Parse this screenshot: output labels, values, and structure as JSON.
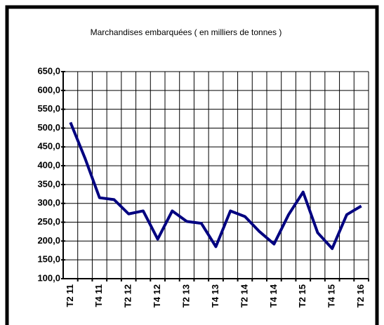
{
  "chart_data": {
    "type": "line",
    "title": "Marchandises embarquées ( en milliers de tonnes )",
    "categories": [
      "T2 11",
      null,
      "T4 11",
      null,
      "T2 12",
      null,
      "T4 12",
      null,
      "T2 13",
      null,
      "T4 13",
      null,
      "T2 14",
      null,
      "T4 14",
      null,
      "T2 15",
      null,
      "T4 15",
      null,
      "T2 16"
    ],
    "series": [
      {
        "color": "#000080",
        "values": [
          515,
          420,
          315,
          310,
          272,
          280,
          205,
          280,
          252,
          247,
          185,
          280,
          265,
          225,
          192,
          270,
          330,
          222,
          180,
          270,
          293
        ]
      }
    ],
    "ylim": [
      100,
      650
    ],
    "yticks": [
      {
        "value": 100,
        "label": "100,0"
      },
      {
        "value": 150,
        "label": "150,0"
      },
      {
        "value": 200,
        "label": "200,0"
      },
      {
        "value": 250,
        "label": "250,0"
      },
      {
        "value": 300,
        "label": "300,0"
      },
      {
        "value": 350,
        "label": "350,0"
      },
      {
        "value": 400,
        "label": "400,0"
      },
      {
        "value": 450,
        "label": "450,0"
      },
      {
        "value": 500,
        "label": "500,0"
      },
      {
        "value": 550,
        "label": "550,0"
      },
      {
        "value": 600,
        "label": "600,0"
      },
      {
        "value": 650,
        "label": "650,0"
      }
    ],
    "grid": true
  }
}
